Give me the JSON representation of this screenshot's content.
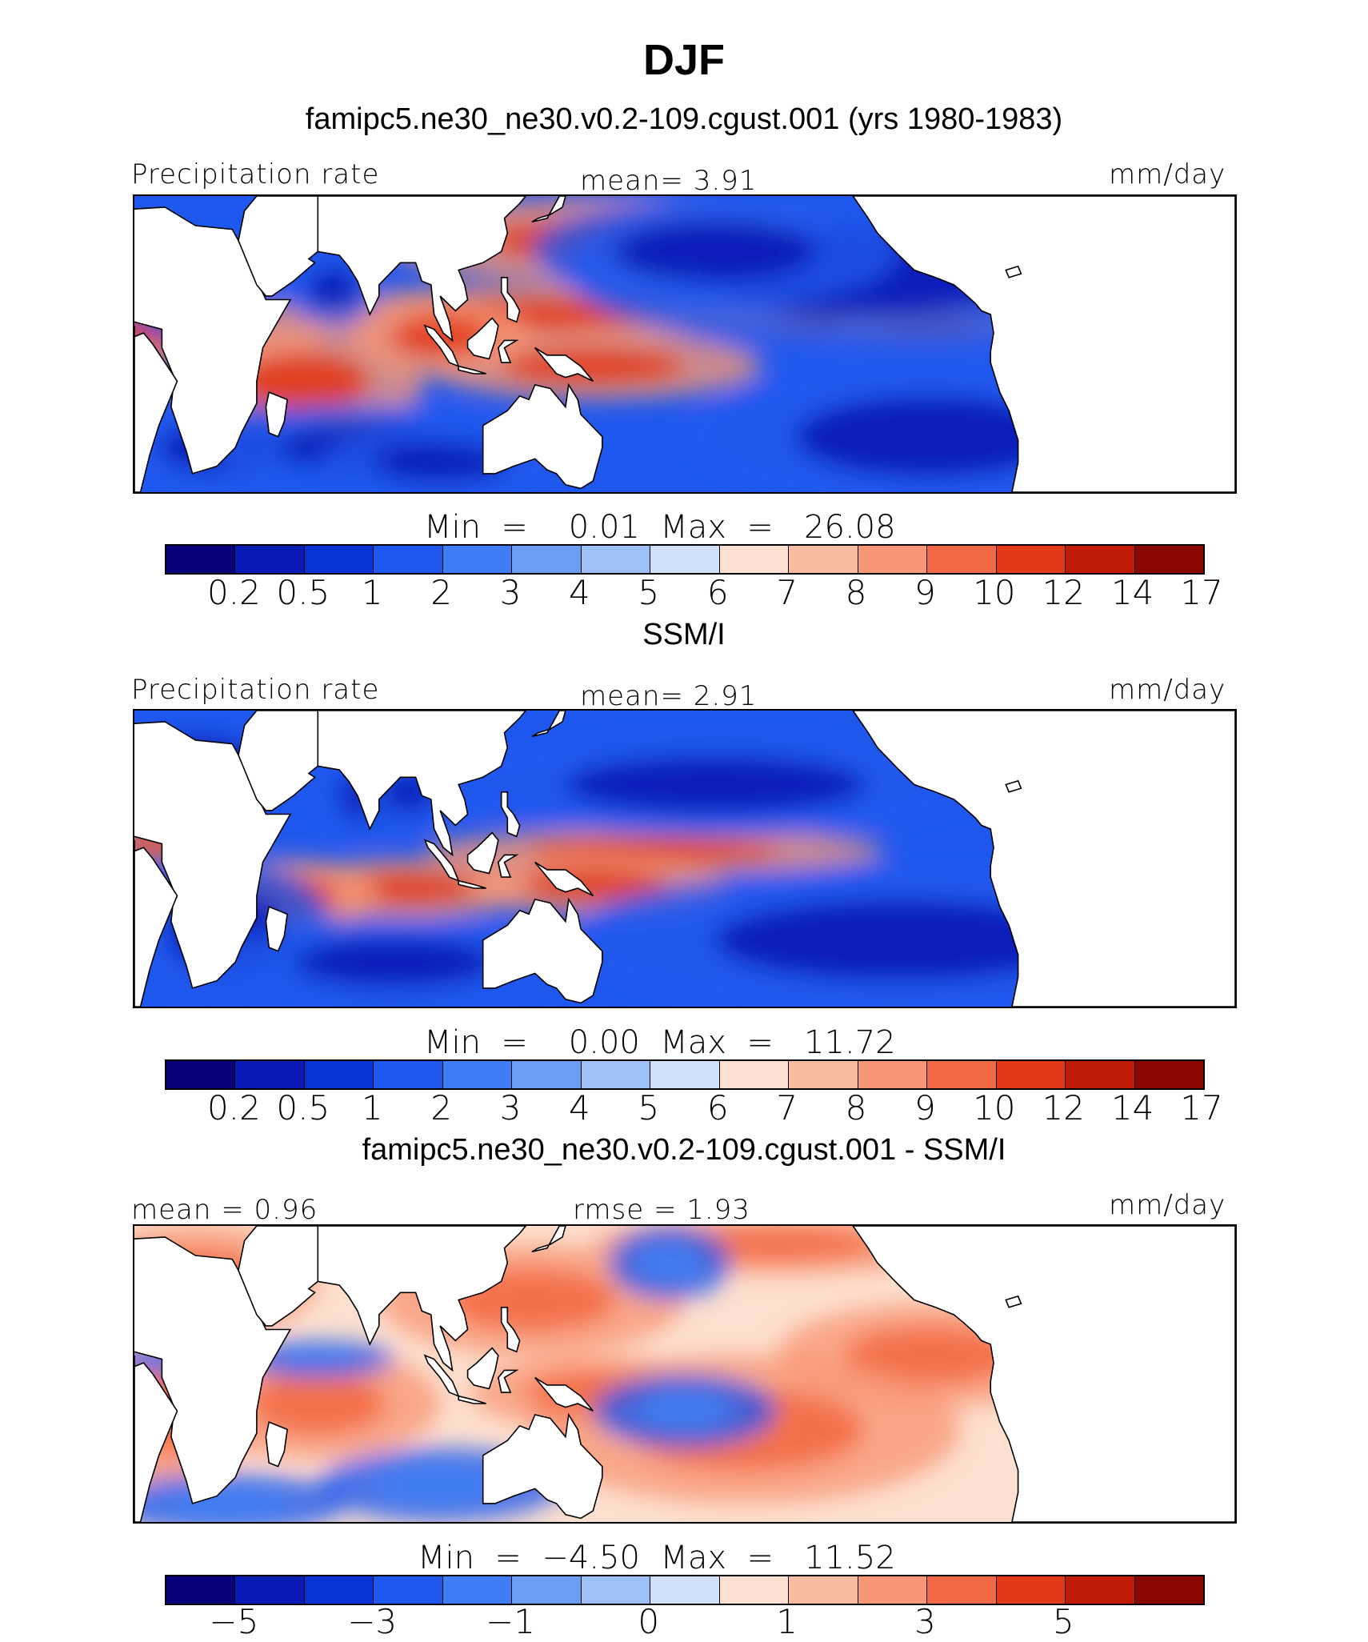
{
  "figure": {
    "season": "DJF",
    "case_title": "famipc5.ne30_ne30.v0.2-109.cgust.001 (yrs 1980-1983)",
    "obs_title": "SSM/I",
    "diff_title": "famipc5.ne30_ne30.v0.2-109.cgust.001 - SSM/I"
  },
  "panels": [
    {
      "left_label": "Precipitation rate",
      "center_label": "mean=   3.91",
      "right_label": "mm/day",
      "minmax": "Min  =    0.01  Max  =   26.08",
      "tick_labels": [
        "0.2",
        "0.5",
        "1",
        "2",
        "3",
        "4",
        "5",
        "6",
        "7",
        "8",
        "9",
        "10",
        "12",
        "14",
        "17"
      ]
    },
    {
      "left_label": "Precipitation rate",
      "center_label": "mean=   2.91",
      "right_label": "mm/day",
      "minmax": "Min  =    0.00  Max  =   11.72",
      "tick_labels": [
        "0.2",
        "0.5",
        "1",
        "2",
        "3",
        "4",
        "5",
        "6",
        "7",
        "8",
        "9",
        "10",
        "12",
        "14",
        "17"
      ]
    },
    {
      "left_label": "mean  =   0.96",
      "center_label": "rmse  =   1.93",
      "right_label": "mm/day",
      "minmax": "Min  =  −4.50  Max  =   11.52",
      "tick_labels": [
        "−5",
        "−3",
        "−1",
        "0",
        "1",
        "3",
        "5"
      ]
    }
  ],
  "colors": {
    "precip_scale": [
      "#08007a",
      "#0a1ab5",
      "#0a35d6",
      "#1f58ee",
      "#3f7df4",
      "#6b9df5",
      "#9ebff7",
      "#cfe0fb",
      "#fde0cf",
      "#f9bca3",
      "#f79775",
      "#f26a45",
      "#e23a16",
      "#c01a08",
      "#8a0600"
    ],
    "diff_scale": [
      "#08007a",
      "#0a1ab5",
      "#0a35d6",
      "#1f58ee",
      "#3f7df4",
      "#6b9df5",
      "#9ebff7",
      "#cfe0fb",
      "#fde0cf",
      "#f9bca3",
      "#f79775",
      "#f26a45",
      "#e23a16",
      "#c01a08",
      "#8a0600"
    ],
    "land": "#ffffff"
  }
}
